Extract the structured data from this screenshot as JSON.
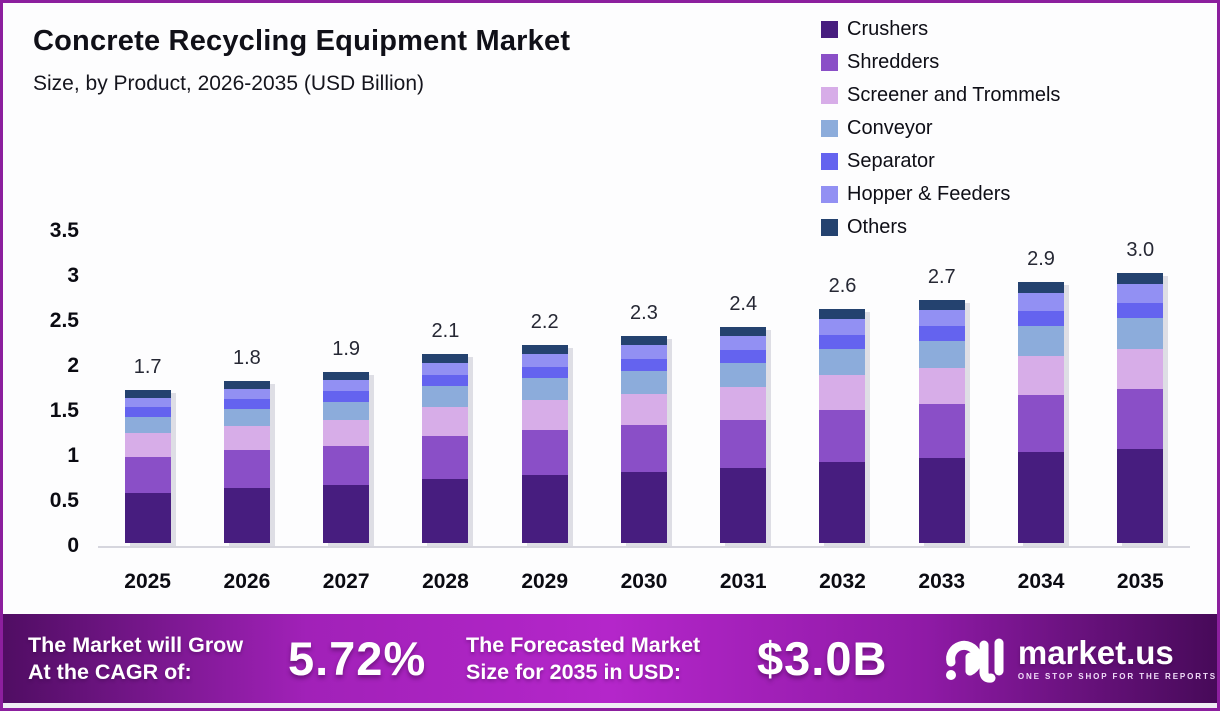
{
  "header": {
    "title": "Concrete Recycling Equipment Market",
    "subtitle": "Size, by Product, 2026-2035 (USD Billion)"
  },
  "chart_data": {
    "type": "bar",
    "stacked": true,
    "title": "Concrete Recycling Equipment Market Size, by Product, 2026-2035 (USD Billion)",
    "xlabel": "",
    "ylabel": "USD Billion",
    "ylim": [
      0,
      3.5
    ],
    "grid": false,
    "legend_position": "top-right",
    "categories": [
      "2025",
      "2026",
      "2027",
      "2028",
      "2029",
      "2030",
      "2031",
      "2032",
      "2033",
      "2034",
      "2035"
    ],
    "totals": [
      1.7,
      1.8,
      1.9,
      2.1,
      2.2,
      2.3,
      2.4,
      2.6,
      2.7,
      2.9,
      3.0
    ],
    "totals_display": [
      "1.7",
      "1.8",
      "1.9",
      "2.1",
      "2.2",
      "2.3",
      "2.4",
      "2.6",
      "2.7",
      "2.9",
      "3.0"
    ],
    "series": [
      {
        "name": "Crushers",
        "color": "#471D7F",
        "values": [
          0.56,
          0.61,
          0.64,
          0.71,
          0.76,
          0.79,
          0.83,
          0.9,
          0.94,
          1.01,
          1.05
        ]
      },
      {
        "name": "Shredders",
        "color": "#8A4FC7",
        "values": [
          0.4,
          0.42,
          0.44,
          0.48,
          0.5,
          0.52,
          0.54,
          0.58,
          0.6,
          0.64,
          0.66
        ]
      },
      {
        "name": "Screener and Trommels",
        "color": "#D7ADE8",
        "values": [
          0.26,
          0.27,
          0.29,
          0.32,
          0.33,
          0.35,
          0.36,
          0.39,
          0.41,
          0.43,
          0.45
        ]
      },
      {
        "name": "Conveyor",
        "color": "#8CACDB",
        "values": [
          0.18,
          0.19,
          0.2,
          0.23,
          0.24,
          0.25,
          0.27,
          0.29,
          0.3,
          0.33,
          0.34
        ]
      },
      {
        "name": "Separator",
        "color": "#6463EF",
        "values": [
          0.11,
          0.11,
          0.12,
          0.13,
          0.13,
          0.14,
          0.14,
          0.15,
          0.16,
          0.17,
          0.17
        ]
      },
      {
        "name": "Hopper & Feeders",
        "color": "#9290F3",
        "values": [
          0.1,
          0.11,
          0.12,
          0.13,
          0.14,
          0.15,
          0.16,
          0.18,
          0.18,
          0.2,
          0.21
        ]
      },
      {
        "name": "Others",
        "color": "#24426F",
        "values": [
          0.09,
          0.09,
          0.09,
          0.1,
          0.1,
          0.1,
          0.1,
          0.11,
          0.11,
          0.12,
          0.12
        ]
      }
    ],
    "y_ticks": [
      {
        "label": "3.5",
        "value": 3.5
      },
      {
        "label": "3",
        "value": 3.0
      },
      {
        "label": "2.5",
        "value": 2.5
      },
      {
        "label": "2",
        "value": 2.0
      },
      {
        "label": "1.5",
        "value": 1.5
      },
      {
        "label": "1",
        "value": 1.0
      },
      {
        "label": "0.5",
        "value": 0.5
      },
      {
        "label": "0",
        "value": 0.0
      }
    ]
  },
  "footer": {
    "cagr_label_line1": "The Market will Grow",
    "cagr_label_line2": "At the CAGR of:",
    "cagr_value": "5.72%",
    "forecast_label_line1": "The Forecasted Market",
    "forecast_label_line2": "Size for 2035 in USD:",
    "forecast_value": "$3.0B",
    "brand": "market.us",
    "brand_tagline": "ONE STOP SHOP FOR THE REPORTS"
  },
  "colors": {
    "frame_border": "#8C1F9E",
    "footer_gradient_bright": "#B426CA",
    "footer_gradient_dark": "#470A59",
    "baseline": "#D6D6DE",
    "text_dark": "#101018"
  }
}
